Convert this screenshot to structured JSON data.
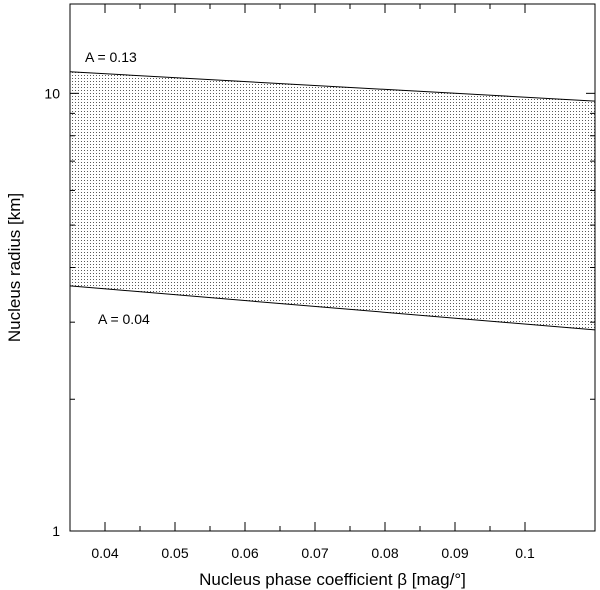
{
  "chart_data": {
    "type": "area",
    "title": "",
    "xlabel": "Nucleus phase coefficient β [mag/°]",
    "ylabel": "Nucleus radius [km]",
    "xlim": [
      0.035,
      0.11
    ],
    "ylim": [
      1,
      16
    ],
    "yscale": "log",
    "grid": false,
    "fill_pattern": "stippled",
    "x_ticks": [
      0.04,
      0.05,
      0.06,
      0.07,
      0.08,
      0.09,
      0.1
    ],
    "x_tick_labels": [
      "0.04",
      "0.05",
      "0.06",
      "0.07",
      "0.08",
      "0.09",
      "0.1"
    ],
    "y_major_ticks": [
      1,
      10
    ],
    "y_major_tick_labels": [
      "1",
      "10"
    ],
    "y_minor_ticks": [
      2,
      3,
      4,
      5,
      6,
      7,
      8,
      9
    ],
    "series": [
      {
        "name": "A = 0.13",
        "x": [
          0.035,
          0.11
        ],
        "y": [
          11.2,
          9.6
        ]
      },
      {
        "name": "A = 0.04",
        "x": [
          0.035,
          0.11
        ],
        "y": [
          3.63,
          2.88
        ]
      }
    ],
    "annotations": [
      {
        "text": "A = 0.13"
      },
      {
        "text": "A = 0.04"
      }
    ]
  }
}
